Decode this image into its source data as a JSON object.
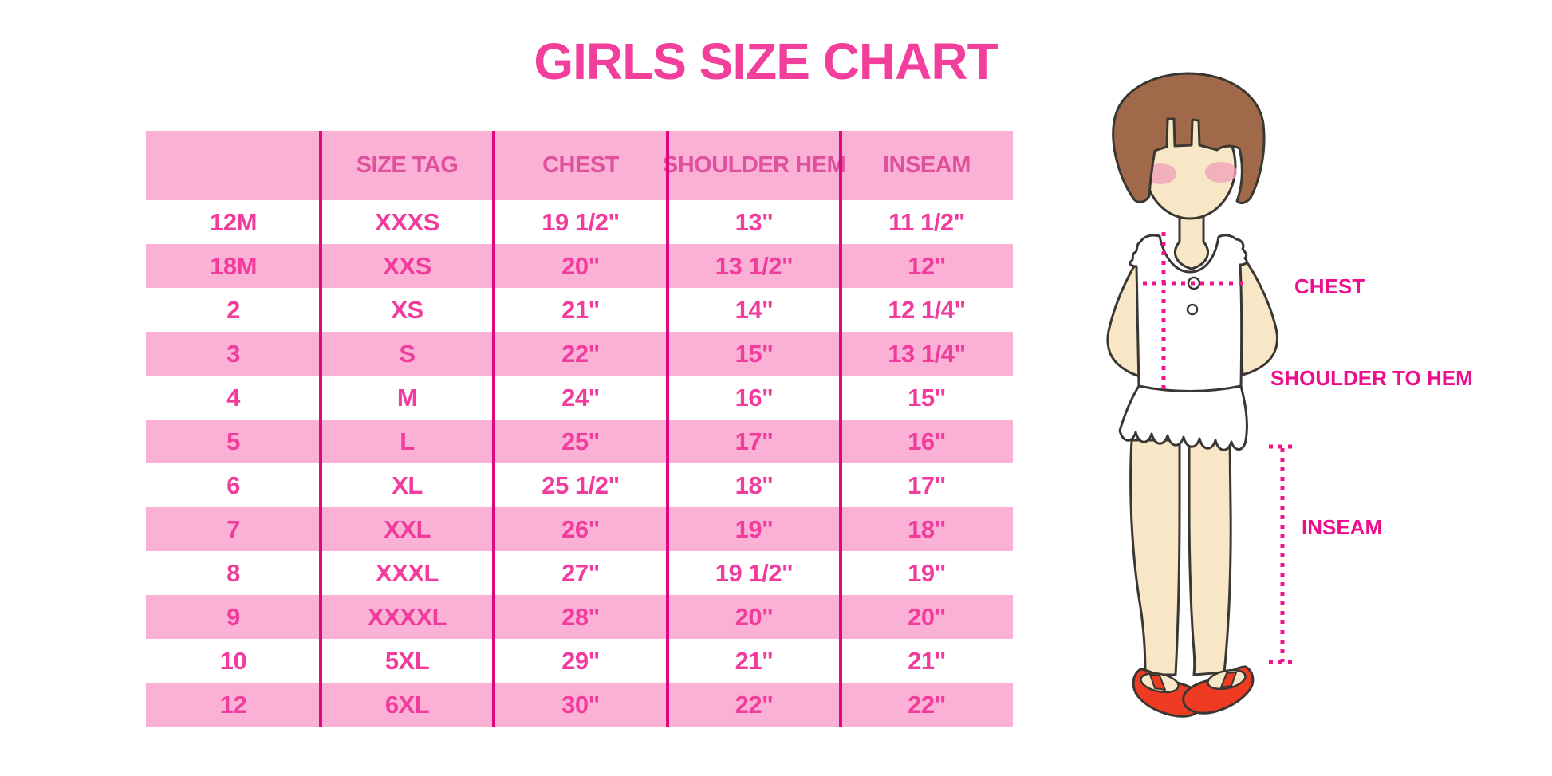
{
  "title": "GIRLS SIZE CHART",
  "chart_data": {
    "type": "table",
    "title": "GIRLS SIZE CHART",
    "columns": [
      "",
      "SIZE TAG",
      "CHEST",
      "SHOULDER HEM",
      "INSEAM"
    ],
    "rows": [
      [
        "12M",
        "XXXS",
        "19 1/2\"",
        "13\"",
        "11 1/2\""
      ],
      [
        "18M",
        "XXS",
        "20\"",
        "13 1/2\"",
        "12\""
      ],
      [
        "2",
        "XS",
        "21\"",
        "14\"",
        "12 1/4\""
      ],
      [
        "3",
        "S",
        "22\"",
        "15\"",
        "13 1/4\""
      ],
      [
        "4",
        "M",
        "24\"",
        "16\"",
        "15\""
      ],
      [
        "5",
        "L",
        "25\"",
        "17\"",
        "16\""
      ],
      [
        "6",
        "XL",
        "25 1/2\"",
        "18\"",
        "17\""
      ],
      [
        "7",
        "XXL",
        "26\"",
        "19\"",
        "18\""
      ],
      [
        "8",
        "XXXL",
        "27\"",
        "19 1/2\"",
        "19\""
      ],
      [
        "9",
        "XXXXL",
        "28\"",
        "20\"",
        "20\""
      ],
      [
        "10",
        "5XL",
        "29\"",
        "21\"",
        "21\""
      ],
      [
        "12",
        "6XL",
        "30\"",
        "22\"",
        "22\""
      ]
    ],
    "row_style": "alternating white/pink stripes, header pink",
    "figure_annotations": [
      "CHEST",
      "SHOULDER TO HEM",
      "INSEAM"
    ]
  },
  "figure_labels": {
    "chest": "CHEST",
    "shoulder_to_hem": "SHOULDER TO HEM",
    "inseam": "INSEAM"
  },
  "colors": {
    "title_pink": "#F23F9C",
    "row_pink": "#FBB0D5",
    "header_text": "#E0519D",
    "cell_text": "#F13C9E",
    "divider_magenta": "#E2067F",
    "label_magenta": "#EC0E8D",
    "dotted_line": "#F0148C",
    "hair_brown": "#A06A4A",
    "skin": "#F8E7C6",
    "blush": "#F1A3BA",
    "shoe_red": "#EE3B22"
  }
}
